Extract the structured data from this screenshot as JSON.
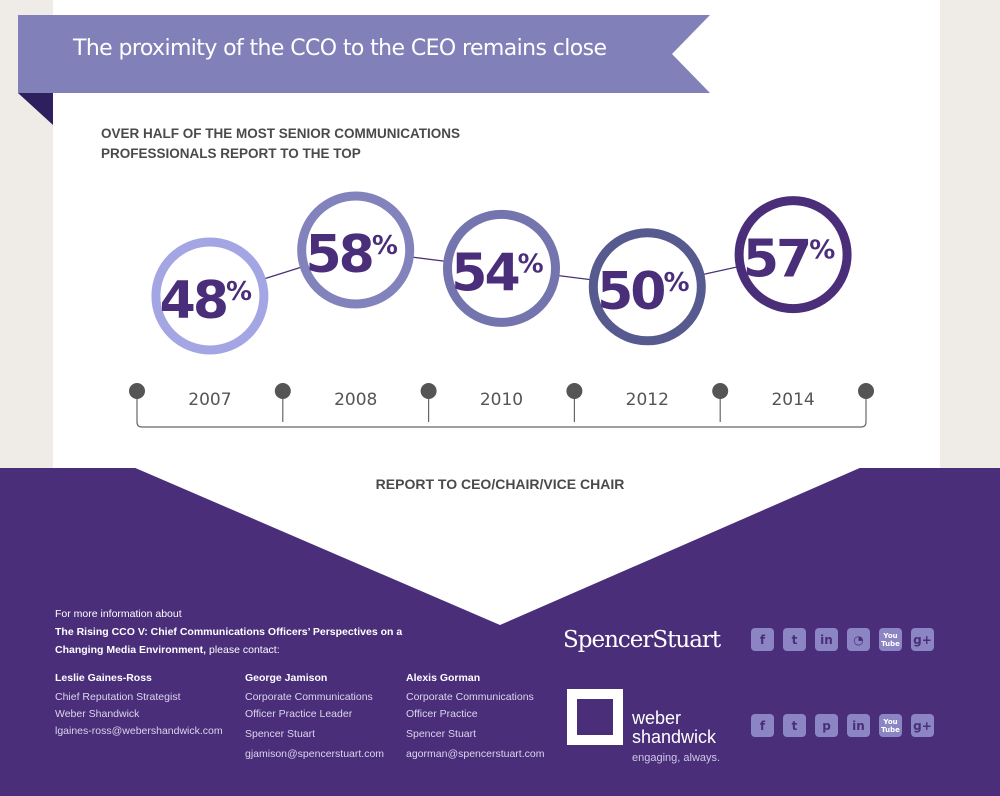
{
  "banner": {
    "title": "The proximity of the CCO to the CEO remains close"
  },
  "subtitle": [
    "OVER HALF OF THE MOST SENIOR COMMUNICATIONS",
    "PROFESSIONALS REPORT TO THE TOP"
  ],
  "chart_data": {
    "type": "line",
    "title": "OVER HALF OF THE MOST SENIOR COMMUNICATIONS PROFESSIONALS REPORT TO THE TOP",
    "xlabel": "REPORT TO CEO/CHAIR/VICE CHAIR",
    "categories": [
      "2007",
      "2008",
      "2010",
      "2012",
      "2014"
    ],
    "values": [
      48,
      58,
      54,
      50,
      57
    ],
    "labels": [
      "48%",
      "58%",
      "54%",
      "50%",
      "57%"
    ],
    "colors": [
      "#a3a6e3",
      "#8282bc",
      "#7474ae",
      "#565a8e",
      "#4a2e7a"
    ]
  },
  "footer": {
    "intro": "For more information about",
    "report_title": "The Rising CCO V: Chief Communications Officers’ Perspectives on a Changing Media Environment,",
    "contact_suffix": " please contact:",
    "contacts": [
      {
        "name": "Leslie Gaines-Ross",
        "title": "Chief Reputation Strategist",
        "org": "Weber Shandwick",
        "email": "lgaines-ross@webershandwick.com"
      },
      {
        "name": "George Jamison",
        "title": "Corporate Communications Officer Practice Leader",
        "org": "Spencer Stuart",
        "email": "gjamison@spencerstuart.com"
      },
      {
        "name": "Alexis Gorman",
        "title": "Corporate Communications Officer Practice",
        "org": "Spencer Stuart",
        "email": "agorman@spencerstuart.com"
      }
    ],
    "spencer_logo": "SpencerStuart",
    "weber_logo": [
      "weber",
      "shandwick"
    ],
    "weber_tagline": "engaging, always.",
    "spencer_social": [
      "f",
      "t",
      "in",
      "rss",
      "You Tube",
      "g+"
    ],
    "weber_social": [
      "f",
      "t",
      "p",
      "in",
      "You Tube",
      "g+"
    ]
  }
}
